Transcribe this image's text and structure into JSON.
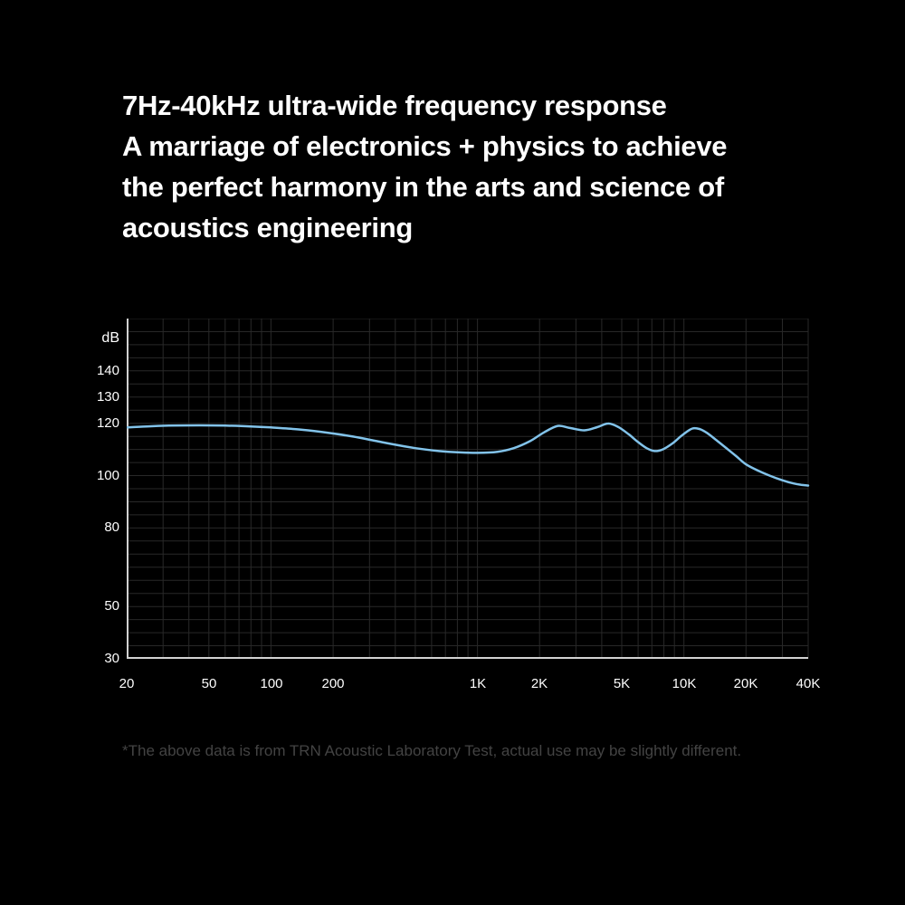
{
  "heading": {
    "lines": [
      "7Hz-40kHz ultra-wide frequency response",
      "A marriage of electronics + physics to achieve",
      "the perfect harmony in the arts and science of",
      "acoustics engineering"
    ]
  },
  "footnote": "*The above data is from TRN Acoustic Laboratory Test, actual use may be slightly different.",
  "colors": {
    "background": "#000000",
    "heading_text": "#ffffff",
    "grid": "#282828",
    "axis": "#d2d2d2",
    "curve": "#82c3ea",
    "tick_label": "#fdfdfd",
    "footnote_text": "#434343"
  },
  "chart_data": {
    "type": "line",
    "title": "",
    "xlabel": "",
    "ylabel": "dB",
    "legend": false,
    "grid": true,
    "x_axis": {
      "scale": "log",
      "min": 20,
      "max": 40000,
      "tick_labels": [
        "20",
        "50",
        "100",
        "200",
        "1K",
        "2K",
        "5K",
        "10K",
        "20K",
        "40K"
      ],
      "tick_values": [
        20,
        50,
        100,
        200,
        1000,
        2000,
        5000,
        10000,
        20000,
        40000
      ],
      "minor_gridlines": "1-9 multiples per decade"
    },
    "y_axis": {
      "min": 30,
      "max": 160,
      "grid_step": 5,
      "tick_labels": [
        "140",
        "130",
        "120",
        "100",
        "80",
        "50",
        "30"
      ],
      "tick_values": [
        140,
        130,
        120,
        100,
        80,
        50,
        30
      ]
    },
    "series": [
      {
        "name": "frequency-response-curve",
        "color": "#82c3ea",
        "points": [
          [
            20,
            118.4
          ],
          [
            25,
            118.8
          ],
          [
            32,
            119.1
          ],
          [
            45,
            119.2
          ],
          [
            60,
            119.1
          ],
          [
            80,
            118.8
          ],
          [
            100,
            118.4
          ],
          [
            130,
            117.8
          ],
          [
            160,
            117.1
          ],
          [
            200,
            116.1
          ],
          [
            250,
            114.9
          ],
          [
            320,
            113.3
          ],
          [
            400,
            111.8
          ],
          [
            500,
            110.5
          ],
          [
            650,
            109.4
          ],
          [
            800,
            108.9
          ],
          [
            1000,
            108.7
          ],
          [
            1250,
            109.1
          ],
          [
            1500,
            110.5
          ],
          [
            1800,
            113.2
          ],
          [
            2100,
            116.5
          ],
          [
            2450,
            119.0
          ],
          [
            2800,
            118.2
          ],
          [
            3300,
            117.3
          ],
          [
            3800,
            118.5
          ],
          [
            4300,
            119.9
          ],
          [
            4800,
            118.6
          ],
          [
            5400,
            115.8
          ],
          [
            6000,
            112.8
          ],
          [
            6600,
            110.5
          ],
          [
            7200,
            109.4
          ],
          [
            7900,
            110.0
          ],
          [
            8800,
            112.3
          ],
          [
            9800,
            115.4
          ],
          [
            11000,
            118.0
          ],
          [
            12000,
            117.7
          ],
          [
            13000,
            116.2
          ],
          [
            14500,
            113.3
          ],
          [
            16000,
            110.6
          ],
          [
            18000,
            107.3
          ],
          [
            20000,
            104.3
          ],
          [
            23000,
            101.8
          ],
          [
            26000,
            100.0
          ],
          [
            30000,
            98.2
          ],
          [
            34000,
            97.0
          ],
          [
            37000,
            96.5
          ],
          [
            40000,
            96.2
          ]
        ]
      }
    ]
  }
}
